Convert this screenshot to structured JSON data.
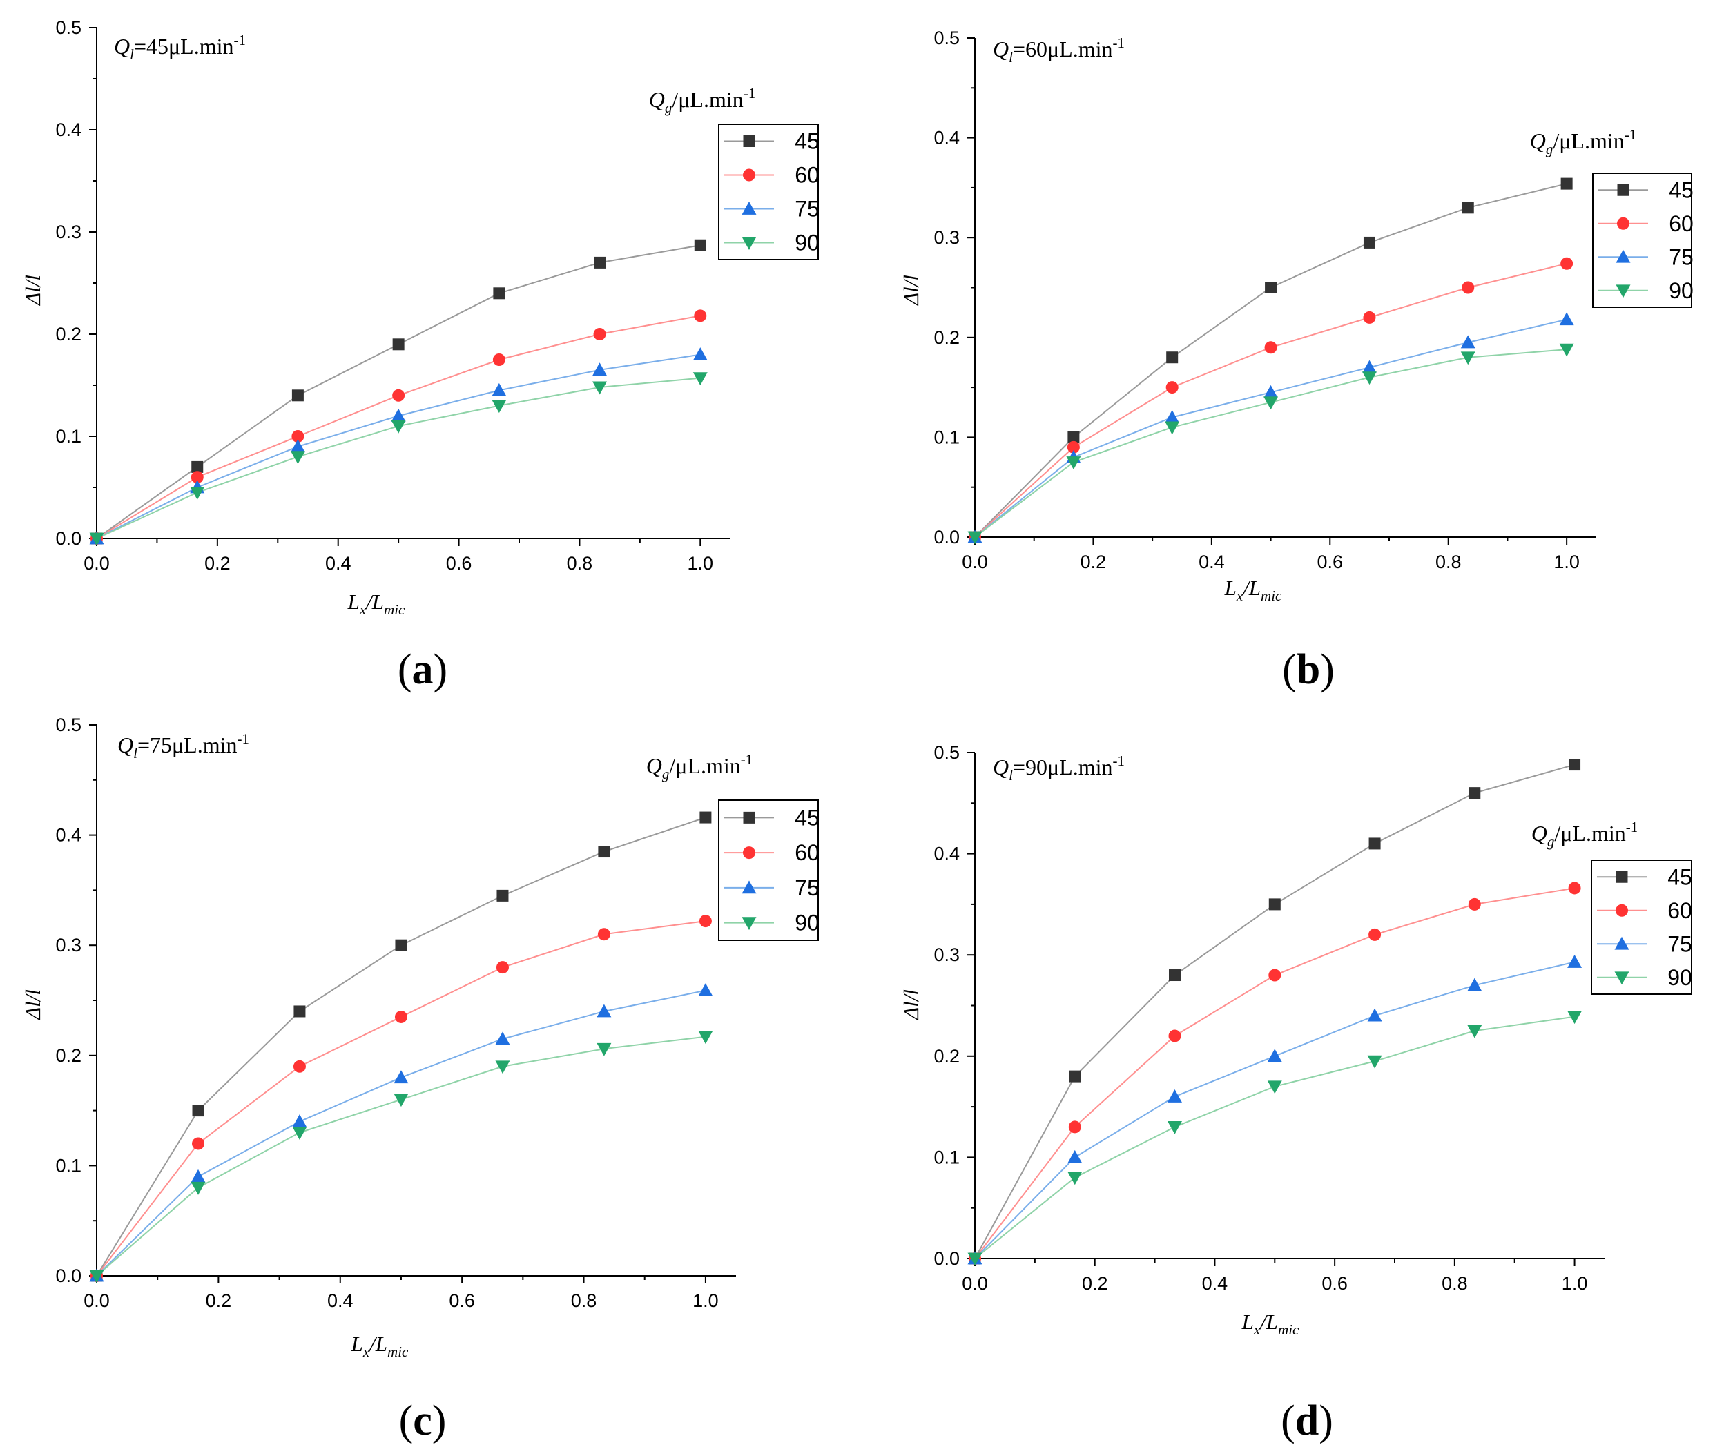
{
  "colors": {
    "45": "#333333",
    "60": "#ff3333",
    "75": "#1f6fe0",
    "90": "#22a66a",
    "line45": "#9a9a9a",
    "line60": "#ff8f8f",
    "line75": "#7aaeea",
    "line90": "#8fd3a8"
  },
  "chart_data": [
    {
      "type": "line",
      "panel_label": "(a)",
      "annotation": {
        "Q": "Q",
        "sub": "l",
        "rest": "=45μL.min",
        "sup": "-1"
      },
      "xlabel": {
        "main": "L",
        "sub1": "x",
        "slash": "/L",
        "sub2": "mic"
      },
      "ylabel": "Δl/l",
      "xlim": [
        0,
        1.05
      ],
      "ylim": [
        0,
        0.5
      ],
      "xticks": [
        "0.0",
        "0.2",
        "0.4",
        "0.6",
        "0.8",
        "1.0"
      ],
      "yticks": [
        "0.0",
        "0.1",
        "0.2",
        "0.3",
        "0.4",
        "0.5"
      ],
      "legend_title": {
        "Q": "Q",
        "sub": "g",
        "rest": "/μL.min",
        "sup": "-1"
      },
      "x": [
        0,
        0.1667,
        0.3333,
        0.5,
        0.6667,
        0.8333,
        1.0
      ],
      "series": [
        {
          "name": "45",
          "marker": "square",
          "values": [
            0,
            0.07,
            0.14,
            0.19,
            0.24,
            0.27,
            0.287
          ]
        },
        {
          "name": "60",
          "marker": "circle",
          "values": [
            0,
            0.06,
            0.1,
            0.14,
            0.175,
            0.2,
            0.218
          ]
        },
        {
          "name": "75",
          "marker": "triangle-up",
          "values": [
            0,
            0.05,
            0.09,
            0.12,
            0.145,
            0.165,
            0.18
          ]
        },
        {
          "name": "90",
          "marker": "triangle-down",
          "values": [
            0,
            0.045,
            0.08,
            0.11,
            0.13,
            0.148,
            0.157
          ]
        }
      ]
    },
    {
      "type": "line",
      "panel_label": "(b)",
      "annotation": {
        "Q": "Q",
        "sub": "l",
        "rest": "=60μL.min",
        "sup": "-1"
      },
      "xlabel": {
        "main": "L",
        "sub1": "x",
        "slash": "/L",
        "sub2": "mic"
      },
      "ylabel": "Δl/l",
      "xlim": [
        0,
        1.05
      ],
      "ylim": [
        0,
        0.5
      ],
      "xticks": [
        "0.0",
        "0.2",
        "0.4",
        "0.6",
        "0.8",
        "1.0"
      ],
      "yticks": [
        "0.0",
        "0.1",
        "0.2",
        "0.3",
        "0.4",
        "0.5"
      ],
      "legend_title": {
        "Q": "Q",
        "sub": "g",
        "rest": "/μL.min",
        "sup": "-1"
      },
      "x": [
        0,
        0.1667,
        0.3333,
        0.5,
        0.6667,
        0.8333,
        1.0
      ],
      "series": [
        {
          "name": "45",
          "marker": "square",
          "values": [
            0,
            0.1,
            0.18,
            0.25,
            0.295,
            0.33,
            0.354
          ]
        },
        {
          "name": "60",
          "marker": "circle",
          "values": [
            0,
            0.09,
            0.15,
            0.19,
            0.22,
            0.25,
            0.274
          ]
        },
        {
          "name": "75",
          "marker": "triangle-up",
          "values": [
            0,
            0.08,
            0.12,
            0.145,
            0.17,
            0.195,
            0.218
          ]
        },
        {
          "name": "90",
          "marker": "triangle-down",
          "values": [
            0,
            0.075,
            0.11,
            0.135,
            0.16,
            0.18,
            0.188
          ]
        }
      ]
    },
    {
      "type": "line",
      "panel_label": "(c)",
      "annotation": {
        "Q": "Q",
        "sub": "l",
        "rest": "=75μL.min",
        "sup": "-1"
      },
      "xlabel": {
        "main": "L",
        "sub1": "x",
        "slash": "/L",
        "sub2": "mic"
      },
      "ylabel": "Δl/l",
      "xlim": [
        0,
        1.05
      ],
      "ylim": [
        0,
        0.5
      ],
      "xticks": [
        "0.0",
        "0.2",
        "0.4",
        "0.6",
        "0.8",
        "1.0"
      ],
      "yticks": [
        "0.0",
        "0.1",
        "0.2",
        "0.3",
        "0.4",
        "0.5"
      ],
      "legend_title": {
        "Q": "Q",
        "sub": "g",
        "rest": "/μL.min",
        "sup": "-1"
      },
      "x": [
        0,
        0.1667,
        0.3333,
        0.5,
        0.6667,
        0.8333,
        1.0
      ],
      "series": [
        {
          "name": "45",
          "marker": "square",
          "values": [
            0,
            0.15,
            0.24,
            0.3,
            0.345,
            0.385,
            0.416
          ]
        },
        {
          "name": "60",
          "marker": "circle",
          "values": [
            0,
            0.12,
            0.19,
            0.235,
            0.28,
            0.31,
            0.322
          ]
        },
        {
          "name": "75",
          "marker": "triangle-up",
          "values": [
            0,
            0.09,
            0.14,
            0.18,
            0.215,
            0.24,
            0.259
          ]
        },
        {
          "name": "90",
          "marker": "triangle-down",
          "values": [
            0,
            0.08,
            0.13,
            0.16,
            0.19,
            0.206,
            0.217
          ]
        }
      ]
    },
    {
      "type": "line",
      "panel_label": "(d)",
      "annotation": {
        "Q": "Q",
        "sub": "l",
        "rest": "=90μL.min",
        "sup": "-1"
      },
      "xlabel": {
        "main": "L",
        "sub1": "x",
        "slash": "/L",
        "sub2": "mic"
      },
      "ylabel": "Δl/l",
      "xlim": [
        0,
        1.05
      ],
      "ylim": [
        0,
        0.5
      ],
      "xticks": [
        "0.0",
        "0.2",
        "0.4",
        "0.6",
        "0.8",
        "1.0"
      ],
      "yticks": [
        "0.0",
        "0.1",
        "0.2",
        "0.3",
        "0.4",
        "0.5"
      ],
      "legend_title": {
        "Q": "Q",
        "sub": "g",
        "rest": "/μL.min",
        "sup": "-1"
      },
      "x": [
        0,
        0.1667,
        0.3333,
        0.5,
        0.6667,
        0.8333,
        1.0
      ],
      "series": [
        {
          "name": "45",
          "marker": "square",
          "values": [
            0,
            0.18,
            0.28,
            0.35,
            0.41,
            0.46,
            0.488
          ]
        },
        {
          "name": "60",
          "marker": "circle",
          "values": [
            0,
            0.13,
            0.22,
            0.28,
            0.32,
            0.35,
            0.366
          ]
        },
        {
          "name": "75",
          "marker": "triangle-up",
          "values": [
            0,
            0.1,
            0.16,
            0.2,
            0.24,
            0.27,
            0.293
          ]
        },
        {
          "name": "90",
          "marker": "triangle-down",
          "values": [
            0,
            0.08,
            0.13,
            0.17,
            0.195,
            0.225,
            0.239
          ]
        }
      ]
    }
  ]
}
